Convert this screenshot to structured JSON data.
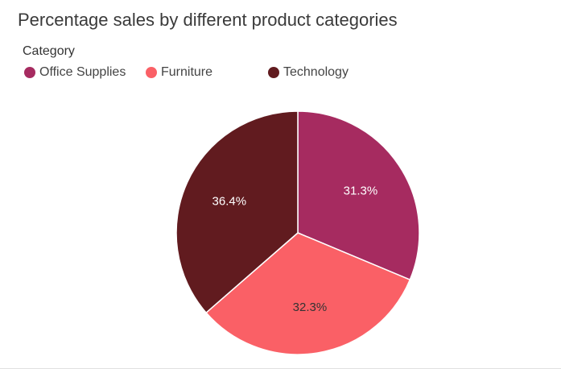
{
  "chart_data": {
    "type": "pie",
    "title": "Percentage sales by different product categories",
    "legend_title": "Category",
    "legend_position": "top-left",
    "slices": [
      {
        "label": "Office Supplies",
        "value": 31.3,
        "display": "31.3%",
        "color": "#a62b60",
        "label_color": "#ffffff"
      },
      {
        "label": "Furniture",
        "value": 32.3,
        "display": "32.3%",
        "color": "#fa6066",
        "label_color": "#333333"
      },
      {
        "label": "Technology",
        "value": 36.4,
        "display": "36.4%",
        "color": "#611b1f",
        "label_color": "#ffffff"
      }
    ]
  }
}
